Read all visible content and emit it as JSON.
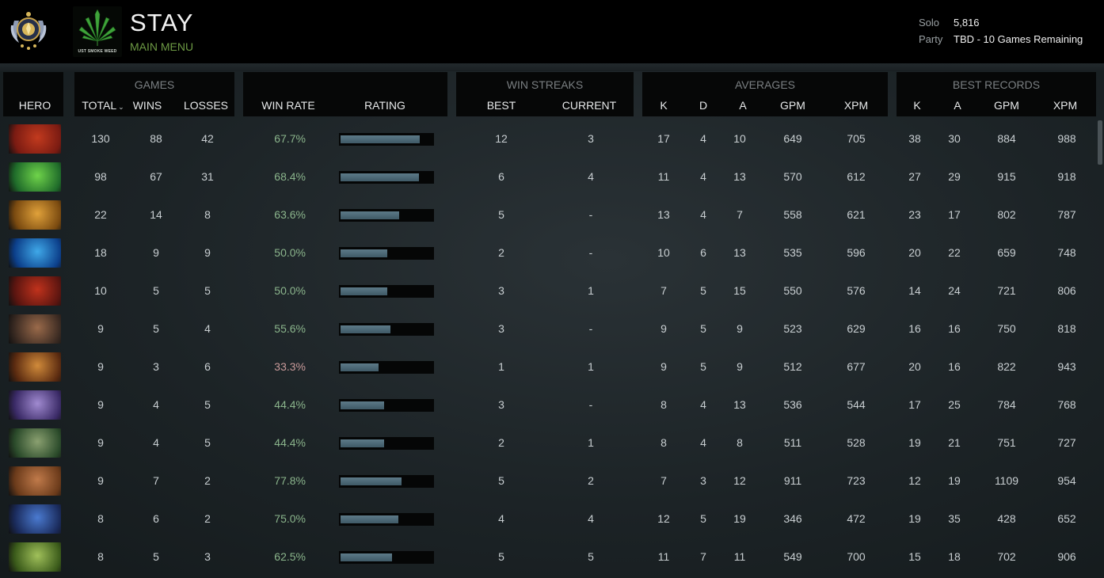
{
  "header": {
    "player_name": "STAY",
    "menu_link": "MAIN MENU",
    "team_tag": "UST SMOKE WEED",
    "solo_label": "Solo",
    "solo_value": "5,816",
    "party_label": "Party",
    "party_value": "TBD - 10 Games Remaining"
  },
  "groups": {
    "games": "GAMES",
    "win_streaks": "WIN STREAKS",
    "averages": "AVERAGES",
    "best_records": "BEST RECORDS"
  },
  "columns": {
    "hero": "HERO",
    "total": "TOTAL",
    "wins": "WINS",
    "losses": "LOSSES",
    "win_rate": "WIN RATE",
    "rating": "RATING",
    "best": "BEST",
    "current": "CURRENT",
    "avg_k": "K",
    "avg_d": "D",
    "avg_a": "A",
    "avg_gpm": "GPM",
    "avg_xpm": "XPM",
    "best_k": "K",
    "best_a": "A",
    "best_gpm": "GPM",
    "best_xpm": "XPM"
  },
  "rows": [
    {
      "hero_icon": "hero-portrait-icon",
      "total": "130",
      "wins": "88",
      "losses": "42",
      "win_rate": "67.7%",
      "rating": 0.86,
      "best": "12",
      "current": "3",
      "k": "17",
      "d": "4",
      "a": "10",
      "gpm": "649",
      "xpm": "705",
      "bk": "38",
      "ba": "30",
      "bgpm": "884",
      "bxpm": "988"
    },
    {
      "hero_icon": "hero-portrait-icon",
      "total": "98",
      "wins": "67",
      "losses": "31",
      "win_rate": "68.4%",
      "rating": 0.85,
      "best": "6",
      "current": "4",
      "k": "11",
      "d": "4",
      "a": "13",
      "gpm": "570",
      "xpm": "612",
      "bk": "27",
      "ba": "29",
      "bgpm": "915",
      "bxpm": "918"
    },
    {
      "hero_icon": "hero-portrait-icon",
      "total": "22",
      "wins": "14",
      "losses": "8",
      "win_rate": "63.6%",
      "rating": 0.64,
      "best": "5",
      "current": "-",
      "k": "13",
      "d": "4",
      "a": "7",
      "gpm": "558",
      "xpm": "621",
      "bk": "23",
      "ba": "17",
      "bgpm": "802",
      "bxpm": "787"
    },
    {
      "hero_icon": "hero-portrait-icon",
      "total": "18",
      "wins": "9",
      "losses": "9",
      "win_rate": "50.0%",
      "rating": 0.51,
      "best": "2",
      "current": "-",
      "k": "10",
      "d": "6",
      "a": "13",
      "gpm": "535",
      "xpm": "596",
      "bk": "20",
      "ba": "22",
      "bgpm": "659",
      "bxpm": "748"
    },
    {
      "hero_icon": "hero-portrait-icon",
      "total": "10",
      "wins": "5",
      "losses": "5",
      "win_rate": "50.0%",
      "rating": 0.51,
      "best": "3",
      "current": "1",
      "k": "7",
      "d": "5",
      "a": "15",
      "gpm": "550",
      "xpm": "576",
      "bk": "14",
      "ba": "24",
      "bgpm": "721",
      "bxpm": "806"
    },
    {
      "hero_icon": "hero-portrait-icon",
      "total": "9",
      "wins": "5",
      "losses": "4",
      "win_rate": "55.6%",
      "rating": 0.54,
      "best": "3",
      "current": "-",
      "k": "9",
      "d": "5",
      "a": "9",
      "gpm": "523",
      "xpm": "629",
      "bk": "16",
      "ba": "16",
      "bgpm": "750",
      "bxpm": "818"
    },
    {
      "hero_icon": "hero-portrait-icon",
      "total": "9",
      "wins": "3",
      "losses": "6",
      "win_rate": "33.3%",
      "rating": 0.41,
      "best": "1",
      "current": "1",
      "k": "9",
      "d": "5",
      "a": "9",
      "gpm": "512",
      "xpm": "677",
      "bk": "20",
      "ba": "16",
      "bgpm": "822",
      "bxpm": "943"
    },
    {
      "hero_icon": "hero-portrait-icon",
      "total": "9",
      "wins": "4",
      "losses": "5",
      "win_rate": "44.4%",
      "rating": 0.47,
      "best": "3",
      "current": "-",
      "k": "8",
      "d": "4",
      "a": "13",
      "gpm": "536",
      "xpm": "544",
      "bk": "17",
      "ba": "25",
      "bgpm": "784",
      "bxpm": "768"
    },
    {
      "hero_icon": "hero-portrait-icon",
      "total": "9",
      "wins": "4",
      "losses": "5",
      "win_rate": "44.4%",
      "rating": 0.47,
      "best": "2",
      "current": "1",
      "k": "8",
      "d": "4",
      "a": "8",
      "gpm": "511",
      "xpm": "528",
      "bk": "19",
      "ba": "21",
      "bgpm": "751",
      "bxpm": "727"
    },
    {
      "hero_icon": "hero-portrait-icon",
      "total": "9",
      "wins": "7",
      "losses": "2",
      "win_rate": "77.8%",
      "rating": 0.66,
      "best": "5",
      "current": "2",
      "k": "7",
      "d": "3",
      "a": "12",
      "gpm": "911",
      "xpm": "723",
      "bk": "12",
      "ba": "19",
      "bgpm": "1109",
      "bxpm": "954"
    },
    {
      "hero_icon": "hero-portrait-icon",
      "total": "8",
      "wins": "6",
      "losses": "2",
      "win_rate": "75.0%",
      "rating": 0.63,
      "best": "4",
      "current": "4",
      "k": "12",
      "d": "5",
      "a": "19",
      "gpm": "346",
      "xpm": "472",
      "bk": "19",
      "ba": "35",
      "bgpm": "428",
      "bxpm": "652"
    },
    {
      "hero_icon": "hero-portrait-icon",
      "total": "8",
      "wins": "5",
      "losses": "3",
      "win_rate": "62.5%",
      "rating": 0.56,
      "best": "5",
      "current": "5",
      "k": "11",
      "d": "7",
      "a": "11",
      "gpm": "549",
      "xpm": "700",
      "bk": "15",
      "ba": "18",
      "bgpm": "702",
      "bxpm": "906"
    }
  ]
}
